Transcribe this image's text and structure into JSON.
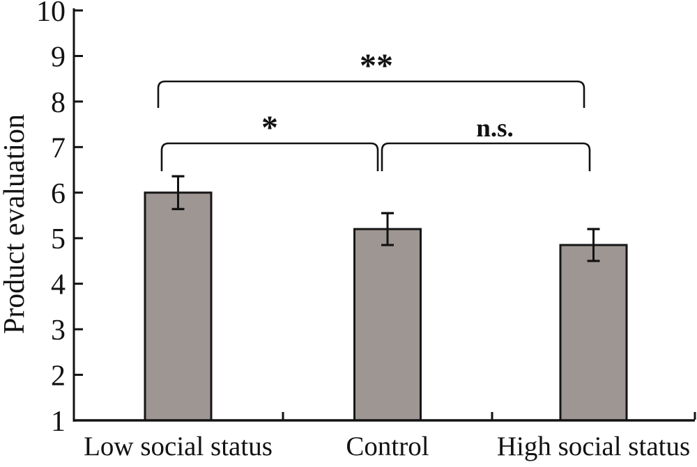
{
  "chart_data": {
    "type": "bar",
    "title": "",
    "xlabel": "",
    "ylabel": "Product evaluation",
    "categories": [
      "Low social status",
      "Control",
      "High social status"
    ],
    "values": [
      6.0,
      5.2,
      4.85
    ],
    "error_bars": [
      0.36,
      0.35,
      0.35
    ],
    "ylim": [
      1,
      10
    ],
    "yticks": [
      1,
      2,
      3,
      4,
      5,
      6,
      7,
      8,
      9,
      10
    ],
    "grid": false,
    "legend": false,
    "bar_fill_color": "#9e9692",
    "bar_edge_color": "#161616",
    "axis_color": "#121212",
    "significance": [
      {
        "label": "**",
        "between": [
          "Low social status",
          "High social status"
        ],
        "level": "upper"
      },
      {
        "label": "*",
        "between": [
          "Low social status",
          "Control"
        ],
        "level": "lower"
      },
      {
        "label": "n.s.",
        "between": [
          "Control",
          "High social status"
        ],
        "level": "lower"
      }
    ]
  }
}
